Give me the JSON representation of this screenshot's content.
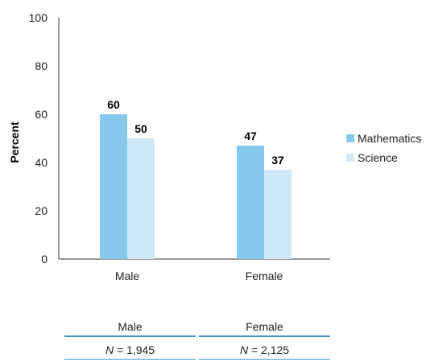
{
  "chart_data": {
    "type": "bar",
    "categories": [
      "Male",
      "Female"
    ],
    "series": [
      {
        "name": "Mathematics",
        "values": [
          60,
          47
        ],
        "color": "#86c9ec"
      },
      {
        "name": "Science",
        "values": [
          50,
          37
        ],
        "color": "#cfe8f8"
      }
    ],
    "ylabel": "Percent",
    "xlabel": "",
    "ylim": [
      0,
      100
    ],
    "yticks": [
      0,
      20,
      40,
      60,
      80,
      100
    ],
    "data_labels": true,
    "grid": false,
    "legend_position": "right"
  },
  "n_table": {
    "columns": [
      {
        "header": "Male",
        "n_label": "N",
        "n_value": " = 1,945"
      },
      {
        "header": "Female",
        "n_label": "N",
        "n_value": " = 2,125"
      }
    ]
  }
}
